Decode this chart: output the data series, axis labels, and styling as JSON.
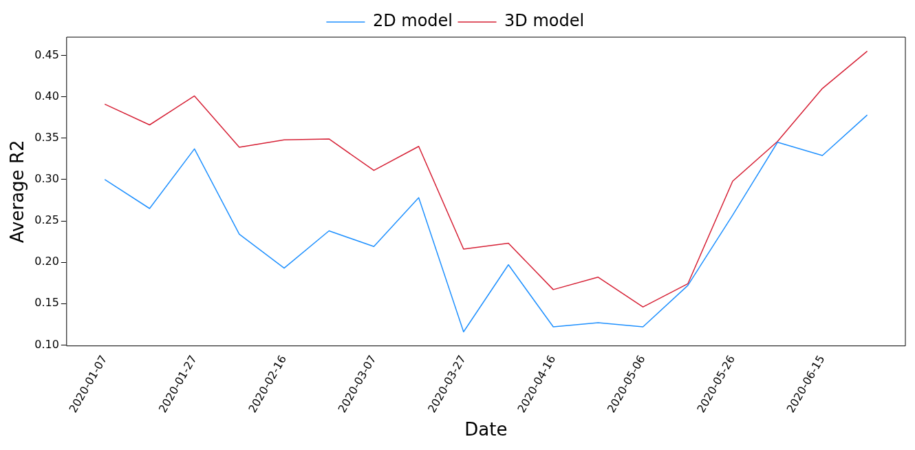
{
  "chart_data": {
    "type": "line",
    "xlabel": "Date",
    "ylabel": "Average R2",
    "x": [
      "2020-01-07",
      "2020-01-17",
      "2020-01-27",
      "2020-02-06",
      "2020-02-16",
      "2020-02-26",
      "2020-03-07",
      "2020-03-17",
      "2020-03-27",
      "2020-04-06",
      "2020-04-16",
      "2020-04-26",
      "2020-05-06",
      "2020-05-16",
      "2020-05-26",
      "2020-06-05",
      "2020-06-15",
      "2020-06-25"
    ],
    "series": [
      {
        "name": "2D model",
        "color": "#1e90ff",
        "values": [
          0.3,
          0.265,
          0.337,
          0.234,
          0.193,
          0.238,
          0.219,
          0.278,
          0.116,
          0.197,
          0.122,
          0.127,
          0.122,
          0.172,
          0.257,
          0.345,
          0.329,
          0.378
        ]
      },
      {
        "name": "3D model",
        "color": "#d62035",
        "values": [
          0.391,
          0.366,
          0.401,
          0.339,
          0.348,
          0.349,
          0.311,
          0.34,
          0.216,
          0.223,
          0.167,
          0.182,
          0.146,
          0.174,
          0.298,
          0.346,
          0.41,
          0.455
        ]
      }
    ],
    "xlim": [
      "2019-12-29T12:00",
      "2020-07-03T12:00"
    ],
    "xticks": [
      "2020-01-07",
      "2020-01-27",
      "2020-02-16",
      "2020-03-07",
      "2020-03-27",
      "2020-04-16",
      "2020-05-06",
      "2020-05-26",
      "2020-06-15"
    ],
    "ylim": [
      0.099,
      0.472
    ],
    "yticks": [
      {
        "value": 0.1,
        "label": "0.10"
      },
      {
        "value": 0.15,
        "label": "0.15"
      },
      {
        "value": 0.2,
        "label": "0.20"
      },
      {
        "value": 0.25,
        "label": "0.25"
      },
      {
        "value": 0.3,
        "label": "0.30"
      },
      {
        "value": 0.35,
        "label": "0.35"
      },
      {
        "value": 0.4,
        "label": "0.40"
      },
      {
        "value": 0.45,
        "label": "0.45"
      }
    ],
    "grid": false,
    "legend": "top",
    "marker": "none",
    "line_style": "solid"
  }
}
